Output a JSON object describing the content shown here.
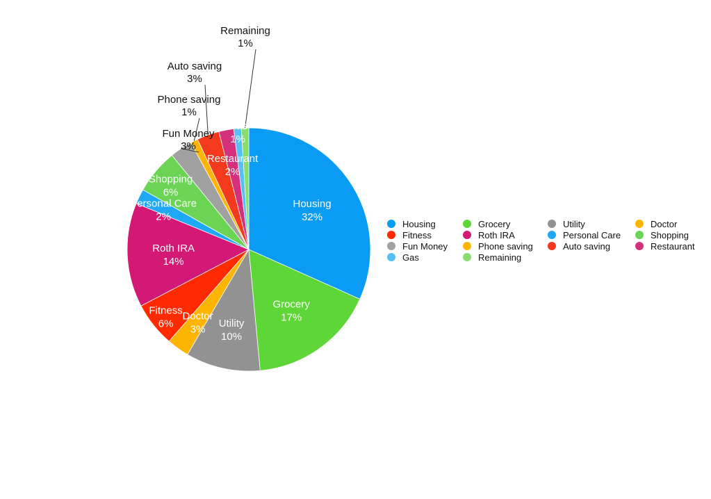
{
  "chart_data": {
    "type": "pie",
    "legend_position": "right",
    "slices": [
      {
        "name": "Housing",
        "value": 32,
        "label": "32%",
        "color": "#0A9BF5",
        "label_mode": "inside"
      },
      {
        "name": "Grocery",
        "value": 17,
        "label": "17%",
        "color": "#5ED638",
        "label_mode": "inside"
      },
      {
        "name": "Utility",
        "value": 10,
        "label": "10%",
        "color": "#929292",
        "label_mode": "inside"
      },
      {
        "name": "Doctor",
        "value": 3,
        "label": "3%",
        "color": "#FDB502",
        "label_mode": "inside"
      },
      {
        "name": "Fitness",
        "value": 6,
        "label": "6%",
        "color": "#FF2A00",
        "label_mode": "inside"
      },
      {
        "name": "Roth IRA",
        "value": 14,
        "label": "14%",
        "color": "#D31876",
        "label_mode": "inside"
      },
      {
        "name": "Personal Care",
        "value": 2,
        "label": "2%",
        "color": "#1EA8F6",
        "label_mode": "inside"
      },
      {
        "name": "Shopping",
        "value": 6,
        "label": "6%",
        "color": "#6CD454",
        "label_mode": "inside"
      },
      {
        "name": "Fun Money",
        "value": 3,
        "label": "3%",
        "color": "#A1A1A1",
        "label_mode": "outside"
      },
      {
        "name": "Phone saving",
        "value": 1,
        "label": "1%",
        "color": "#FDB502",
        "label_mode": "outside"
      },
      {
        "name": "Auto saving",
        "value": 3,
        "label": "3%",
        "color": "#F33A1E",
        "label_mode": "outside"
      },
      {
        "name": "Restaurant",
        "value": 2,
        "label": "2%",
        "color": "#D5307C",
        "label_mode": "inside"
      },
      {
        "name": "Gas",
        "value": 1,
        "label": "1%",
        "color": "#55C0F6",
        "label_mode": "inside"
      },
      {
        "name": "Remaining",
        "value": 1,
        "label": "1%",
        "color": "#88DD6E",
        "label_mode": "outside"
      }
    ],
    "legend": [
      "Housing",
      "Grocery",
      "Utility",
      "Doctor",
      "Fitness",
      "Roth IRA",
      "Personal Care",
      "Shopping",
      "Fun Money",
      "Phone saving",
      "Auto saving",
      "Restaurant",
      "Gas",
      "Remaining"
    ]
  }
}
